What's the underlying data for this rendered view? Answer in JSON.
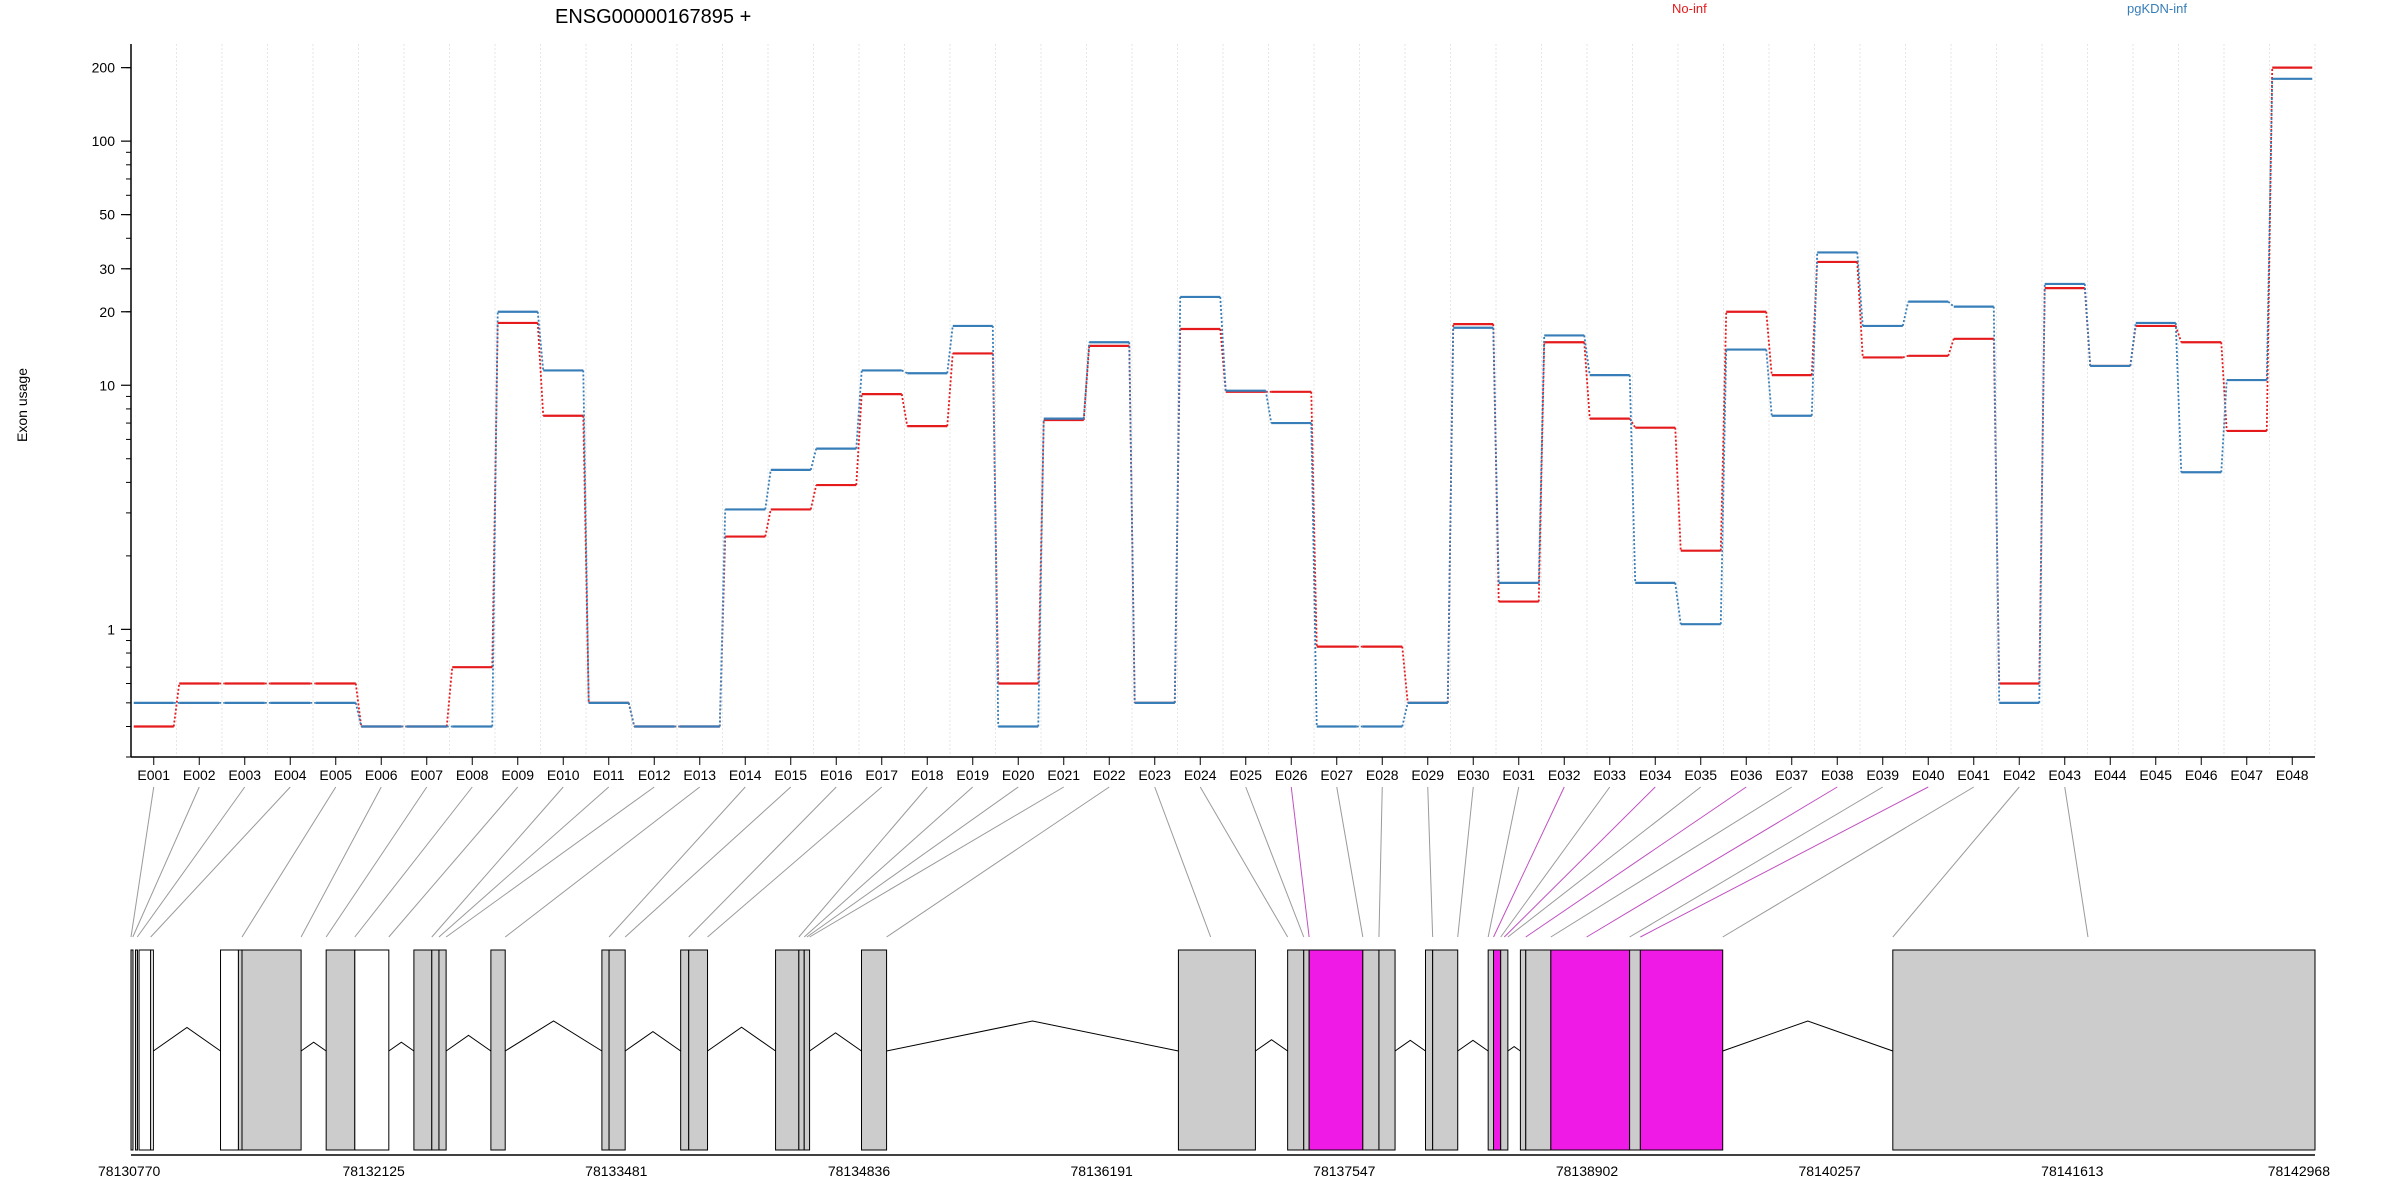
{
  "chart_data": {
    "type": "line",
    "title": "ENSG00000167895 +",
    "ylabel": "Exon usage",
    "yscale": "log",
    "ylim": [
      0.3,
      250
    ],
    "yticks": [
      1,
      10,
      20,
      30,
      50,
      100,
      200
    ],
    "grid": "vertical",
    "legend": [
      "top-center",
      "top-right"
    ],
    "categories": [
      "E001",
      "E002",
      "E003",
      "E004",
      "E005",
      "E006",
      "E007",
      "E008",
      "E009",
      "E010",
      "E011",
      "E012",
      "E013",
      "E014",
      "E015",
      "E016",
      "E017",
      "E018",
      "E019",
      "E020",
      "E021",
      "E022",
      "E023",
      "E024",
      "E025",
      "E026",
      "E027",
      "E028",
      "E029",
      "E030",
      "E031",
      "E032",
      "E033",
      "E034",
      "E035",
      "E036",
      "E037",
      "E038",
      "E039",
      "E040",
      "E041",
      "E042",
      "E043",
      "E044",
      "E045",
      "E046",
      "E047",
      "E048"
    ],
    "series": [
      {
        "name": "No-inf",
        "color": "#e41a1c",
        "values": [
          0.4,
          0.6,
          0.6,
          0.6,
          0.6,
          0.4,
          0.4,
          0.7,
          18,
          7.5,
          0.5,
          0.4,
          0.4,
          2.4,
          3.1,
          3.9,
          9.2,
          6.8,
          13.5,
          0.6,
          7.2,
          14.5,
          0.5,
          17,
          9.4,
          9.4,
          0.85,
          0.85,
          0.5,
          17.8,
          1.3,
          15,
          7.3,
          6.7,
          2.1,
          20,
          11,
          32,
          13,
          13.2,
          15.5,
          0.6,
          25,
          12,
          17.5,
          15,
          6.5,
          200
        ]
      },
      {
        "name": "pgKDN-inf",
        "color": "#377eb8",
        "values": [
          0.5,
          0.5,
          0.5,
          0.5,
          0.5,
          0.4,
          0.4,
          0.4,
          20,
          11.5,
          0.5,
          0.4,
          0.4,
          3.1,
          4.5,
          5.5,
          11.5,
          11.2,
          17.5,
          0.4,
          7.3,
          15,
          0.5,
          23,
          9.5,
          7,
          0.4,
          0.4,
          0.5,
          17.2,
          1.55,
          16,
          11,
          1.55,
          1.05,
          14,
          7.5,
          35,
          17.5,
          22,
          21,
          0.5,
          26,
          12,
          18,
          4.4,
          10.5,
          180
        ]
      }
    ]
  },
  "gene_model": {
    "coord_labels": [
      "78130770",
      "78132125",
      "78133481",
      "78134836",
      "78136191",
      "78137547",
      "78138902",
      "78140257",
      "78141613",
      "78142968"
    ],
    "start": 78130770,
    "end": 78142968,
    "colors": {
      "exon": "#cccccc",
      "highlight": "#f01ae6",
      "intron": "#000000"
    },
    "exons": [
      {
        "s": 78130770,
        "e": 78130780,
        "t": "grey"
      },
      {
        "s": 78130795,
        "e": 78130805,
        "t": "grey"
      },
      {
        "s": 78130815,
        "e": 78130880,
        "t": "white"
      },
      {
        "s": 78130880,
        "e": 78130895,
        "t": "white"
      },
      {
        "s": 78131270,
        "e": 78131370,
        "t": "white"
      },
      {
        "s": 78131370,
        "e": 78131390,
        "t": "grey"
      },
      {
        "s": 78131390,
        "e": 78131720,
        "t": "grey"
      },
      {
        "s": 78131860,
        "e": 78132020,
        "t": "grey"
      },
      {
        "s": 78132020,
        "e": 78132210,
        "t": "white"
      },
      {
        "s": 78132350,
        "e": 78132450,
        "t": "grey"
      },
      {
        "s": 78132450,
        "e": 78132490,
        "t": "grey"
      },
      {
        "s": 78132490,
        "e": 78132530,
        "t": "grey"
      },
      {
        "s": 78132780,
        "e": 78132860,
        "t": "grey"
      },
      {
        "s": 78133400,
        "e": 78133440,
        "t": "grey"
      },
      {
        "s": 78133440,
        "e": 78133530,
        "t": "grey"
      },
      {
        "s": 78133840,
        "e": 78133885,
        "t": "grey"
      },
      {
        "s": 78133885,
        "e": 78133990,
        "t": "grey"
      },
      {
        "s": 78134370,
        "e": 78134500,
        "t": "grey"
      },
      {
        "s": 78134500,
        "e": 78134530,
        "t": "grey"
      },
      {
        "s": 78134530,
        "e": 78134560,
        "t": "grey"
      },
      {
        "s": 78134850,
        "e": 78134990,
        "t": "grey"
      },
      {
        "s": 78136620,
        "e": 78137050,
        "t": "grey"
      },
      {
        "s": 78137230,
        "e": 78137320,
        "t": "grey"
      },
      {
        "s": 78137320,
        "e": 78137350,
        "t": "grey"
      },
      {
        "s": 78137350,
        "e": 78137650,
        "t": "pink"
      },
      {
        "s": 78137650,
        "e": 78137740,
        "t": "grey"
      },
      {
        "s": 78137740,
        "e": 78137830,
        "t": "grey"
      },
      {
        "s": 78138000,
        "e": 78138040,
        "t": "grey"
      },
      {
        "s": 78138040,
        "e": 78138180,
        "t": "grey"
      },
      {
        "s": 78138350,
        "e": 78138380,
        "t": "grey"
      },
      {
        "s": 78138380,
        "e": 78138420,
        "t": "pink"
      },
      {
        "s": 78138420,
        "e": 78138460,
        "t": "grey"
      },
      {
        "s": 78138530,
        "e": 78138560,
        "t": "grey"
      },
      {
        "s": 78138560,
        "e": 78138700,
        "t": "grey"
      },
      {
        "s": 78138700,
        "e": 78139140,
        "t": "pink"
      },
      {
        "s": 78139140,
        "e": 78139200,
        "t": "grey"
      },
      {
        "s": 78139200,
        "e": 78139660,
        "t": "pink"
      },
      {
        "s": 78140610,
        "e": 78142968,
        "t": "grey"
      }
    ],
    "connectors": [
      [
        0,
        78130770,
        "grey"
      ],
      [
        1,
        78130780,
        "grey"
      ],
      [
        2,
        78130805,
        "grey"
      ],
      [
        3,
        78130880,
        "grey"
      ],
      [
        4,
        78131390,
        "grey"
      ],
      [
        5,
        78131720,
        "grey"
      ],
      [
        6,
        78131860,
        "grey"
      ],
      [
        7,
        78132020,
        "grey"
      ],
      [
        8,
        78132210,
        "grey"
      ],
      [
        9,
        78132450,
        "grey"
      ],
      [
        10,
        78132490,
        "grey"
      ],
      [
        11,
        78132530,
        "grey"
      ],
      [
        12,
        78132860,
        "grey"
      ],
      [
        13,
        78133440,
        "grey"
      ],
      [
        14,
        78133530,
        "grey"
      ],
      [
        15,
        78133885,
        "grey"
      ],
      [
        16,
        78133990,
        "grey"
      ],
      [
        17,
        78134500,
        "grey"
      ],
      [
        18,
        78134530,
        "grey"
      ],
      [
        19,
        78134545,
        "grey"
      ],
      [
        20,
        78134560,
        "grey"
      ],
      [
        21,
        78134990,
        "grey"
      ],
      [
        22,
        78136800,
        "grey"
      ],
      [
        23,
        78137230,
        "grey"
      ],
      [
        24,
        78137320,
        "grey"
      ],
      [
        25,
        78137350,
        "pink"
      ],
      [
        26,
        78137650,
        "grey"
      ],
      [
        27,
        78137740,
        "grey"
      ],
      [
        28,
        78138040,
        "grey"
      ],
      [
        29,
        78138180,
        "grey"
      ],
      [
        30,
        78138350,
        "grey"
      ],
      [
        31,
        78138380,
        "pink"
      ],
      [
        32,
        78138420,
        "grey"
      ],
      [
        33,
        78138440,
        "pink"
      ],
      [
        34,
        78138460,
        "grey"
      ],
      [
        35,
        78138560,
        "pink"
      ],
      [
        36,
        78138700,
        "grey"
      ],
      [
        37,
        78138900,
        "pink"
      ],
      [
        38,
        78139140,
        "grey"
      ],
      [
        39,
        78139200,
        "pink"
      ],
      [
        40,
        78139660,
        "grey"
      ],
      [
        41,
        78140610,
        "grey"
      ],
      [
        42,
        78141700,
        "grey"
      ]
    ]
  }
}
